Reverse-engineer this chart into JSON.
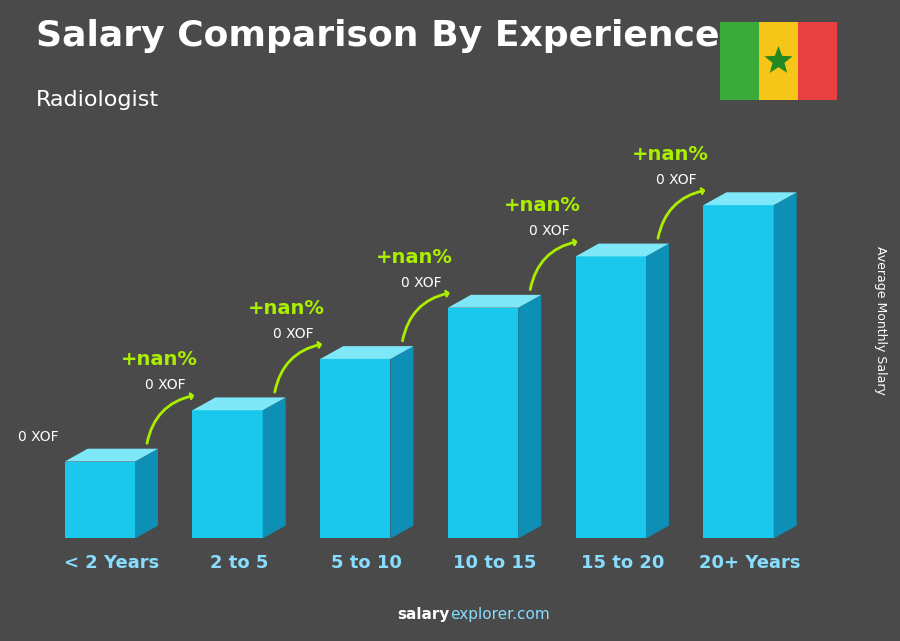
{
  "title": "Salary Comparison By Experience",
  "subtitle": "Radiologist",
  "categories": [
    "< 2 Years",
    "2 to 5",
    "5 to 10",
    "10 to 15",
    "15 to 20",
    "20+ Years"
  ],
  "bar_label": "0 XOF",
  "pct_label": "+nan%",
  "bar_color_front": "#1ac8ed",
  "bar_color_top": "#7fe8f8",
  "bar_color_side": "#0e8fb5",
  "bg_color_top": "#4a4a4a",
  "bg_color_bottom": "#3a3a3a",
  "text_color_white": "#ffffff",
  "text_color_green": "#aaee00",
  "footer_salary": "salary",
  "footer_explorer": "explorer.com",
  "ylabel_text": "Average Monthly Salary",
  "arrow_color": "#aaee00",
  "bar_heights": [
    1.5,
    2.5,
    3.5,
    4.5,
    5.5,
    6.5
  ],
  "flag_green": "#3aaa3a",
  "flag_yellow": "#f5c518",
  "flag_red": "#e84040",
  "flag_star": "#228822",
  "title_fontsize": 26,
  "subtitle_fontsize": 16,
  "xlabel_fontsize": 13,
  "bar_label_fontsize": 10,
  "pct_fontsize": 14,
  "ylabel_fontsize": 9
}
